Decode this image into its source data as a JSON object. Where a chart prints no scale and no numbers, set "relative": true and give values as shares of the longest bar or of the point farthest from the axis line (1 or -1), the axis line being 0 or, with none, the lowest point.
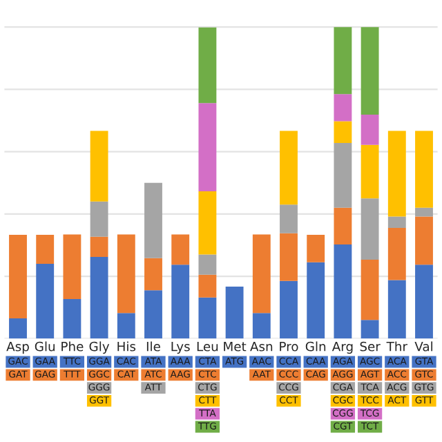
{
  "chart_data": {
    "type": "bar",
    "stacked": true,
    "relative": true,
    "grid": "y",
    "legend": false,
    "categories": [
      "Asp",
      "Glu",
      "Phe",
      "Gly",
      "His",
      "Ile",
      "Lys",
      "Leu",
      "Met",
      "Asn",
      "Pro",
      "Gln",
      "Arg",
      "Ser",
      "Thr",
      "Val"
    ],
    "series": [
      {
        "color": "#4472c4",
        "values": [
          0.065,
          0.24,
          0.127,
          0.262,
          0.082,
          0.155,
          0.237,
          0.132,
          0.167,
          0.082,
          0.185,
          0.245,
          0.302,
          0.06,
          0.188,
          0.237
        ]
      },
      {
        "color": "#ed7d31",
        "values": [
          0.268,
          0.093,
          0.207,
          0.065,
          0.252,
          0.103,
          0.097,
          0.073,
          null,
          0.252,
          0.153,
          0.088,
          0.118,
          0.193,
          0.167,
          0.155
        ]
      },
      {
        "color": "#a5a5a5",
        "values": [
          null,
          null,
          null,
          0.113,
          null,
          0.242,
          null,
          0.065,
          null,
          null,
          0.092,
          null,
          0.208,
          0.197,
          0.037,
          0.028
        ]
      },
      {
        "color": "#ffc000",
        "values": [
          null,
          null,
          null,
          0.227,
          null,
          null,
          null,
          0.203,
          null,
          null,
          0.237,
          null,
          0.07,
          0.172,
          0.275,
          0.247
        ]
      },
      {
        "color": "#d36fc6",
        "values": [
          null,
          null,
          null,
          null,
          null,
          null,
          null,
          0.283,
          null,
          null,
          null,
          null,
          0.087,
          0.097,
          null,
          null
        ]
      },
      {
        "color": "#70ad47",
        "values": [
          null,
          null,
          null,
          null,
          null,
          null,
          null,
          0.243,
          null,
          null,
          null,
          null,
          0.215,
          0.281,
          null,
          null
        ]
      }
    ],
    "annotations": [
      "GAC",
      "GAT",
      "GAA",
      "GAG",
      "TTC",
      "TTT",
      "GGA",
      "GGC",
      "GGG",
      "GGT",
      "CAC",
      "CAT",
      "ATA",
      "ATC",
      "ATT",
      "AAA",
      "AAG",
      "CTA",
      "CTC",
      "CTG",
      "CTT",
      "TTA",
      "TTG",
      "ATG",
      "AAC",
      "AAT",
      "CCA",
      "CCC",
      "CCG",
      "CCT",
      "CAA",
      "CAG",
      "AGA",
      "AGG",
      "CGA",
      "CGC",
      "CGG",
      "CGT",
      "AGC",
      "AGT",
      "TCA",
      "TCC",
      "TCG",
      "TCT",
      "ACA",
      "ACC",
      "ACG",
      "ACT",
      "GTA",
      "GTC",
      "GTG",
      "GTT"
    ]
  }
}
